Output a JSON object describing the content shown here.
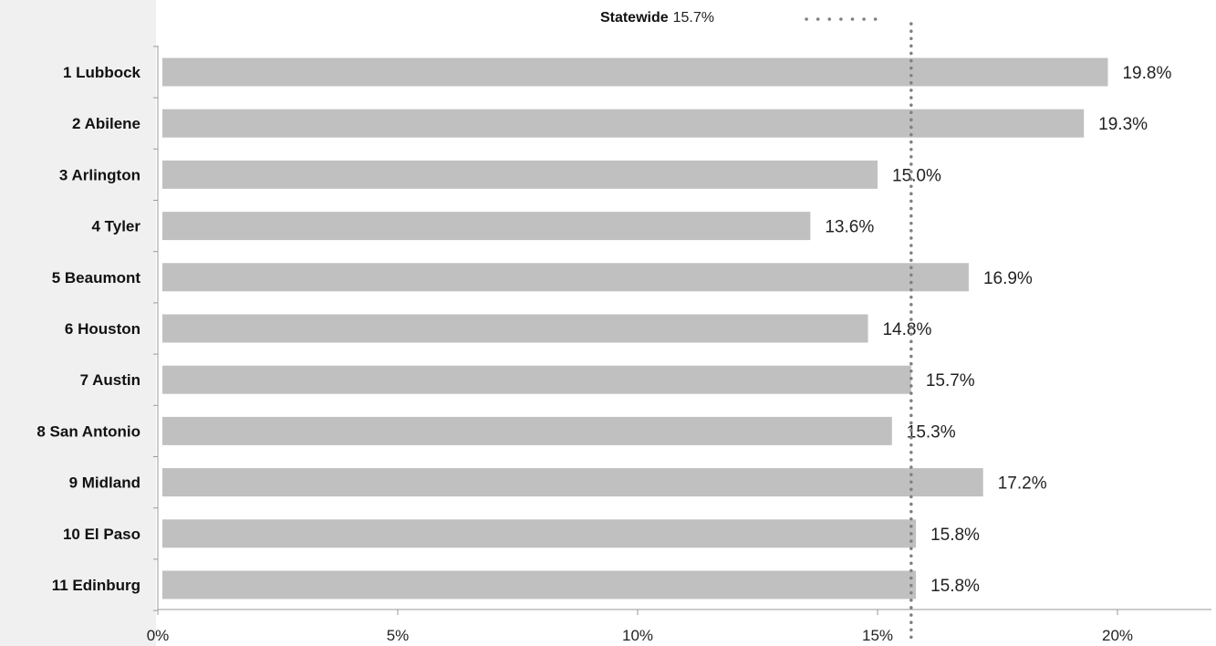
{
  "chart_data": {
    "type": "bar",
    "orientation": "horizontal",
    "categories": [
      "1 Lubbock",
      "2 Abilene",
      "3 Arlington",
      "4 Tyler",
      "5 Beaumont",
      "6 Houston",
      "7 Austin",
      "8 San Antonio",
      "9 Midland",
      "10 El Paso",
      "11 Edinburg"
    ],
    "values": [
      19.8,
      19.3,
      15.0,
      13.6,
      16.9,
      14.8,
      15.7,
      15.3,
      17.2,
      15.8,
      15.8
    ],
    "value_labels": [
      "19.8%",
      "19.3%",
      "15.0%",
      "13.6%",
      "16.9%",
      "14.8%",
      "15.7%",
      "15.3%",
      "17.2%",
      "15.8%",
      "15.8%"
    ],
    "xlim": [
      0,
      22
    ],
    "x_ticks": [
      0,
      5,
      10,
      15,
      20
    ],
    "x_tick_labels": [
      "0%",
      "5%",
      "10%",
      "15%",
      "20%"
    ],
    "reference_line": {
      "value": 15.7,
      "label": "Statewide",
      "value_label": "15.7%",
      "style": "dotted"
    },
    "legend_placement": "top",
    "grid": false,
    "colors": {
      "bar": "#c0c0c0",
      "reference": "#808080",
      "axis": "#999999",
      "left_band": "#f0f0f0"
    }
  }
}
